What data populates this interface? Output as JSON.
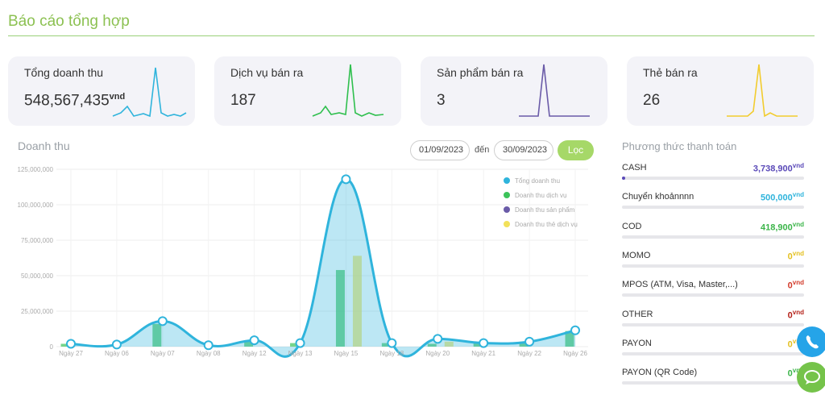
{
  "page": {
    "title": "Báo cáo tổng hợp"
  },
  "cards": [
    {
      "label": "Tổng doanh thu",
      "value": "548,567,435",
      "unit": "vnd",
      "color": "#2fb4dc"
    },
    {
      "label": "Dịch vụ bán ra",
      "value": "187",
      "unit": "",
      "color": "#2fbf4e"
    },
    {
      "label": "Sản phẩm bán ra",
      "value": "3",
      "unit": "",
      "color": "#6a5ba8"
    },
    {
      "label": "Thẻ bán ra",
      "value": "26",
      "unit": "",
      "color": "#f2cc2e"
    }
  ],
  "revenue": {
    "title": "Doanh thu",
    "date_from": "01/09/2023",
    "date_separator": "đến",
    "date_to": "30/09/2023",
    "filter_label": "Lọc"
  },
  "chart_data": {
    "type": "line",
    "categories": [
      "Ngày 27",
      "Ngày 06",
      "Ngày 07",
      "Ngày 08",
      "Ngày 12",
      "Ngày 13",
      "Ngày 15",
      "Ngày 18",
      "Ngày 20",
      "Ngày 21",
      "Ngày 22",
      "Ngày 26"
    ],
    "y_ticks": [
      "125,000,000",
      "100,000,000",
      "75,000,000",
      "50,000,000",
      "25,000,000",
      "0"
    ],
    "ylim": [
      0,
      125000000
    ],
    "grid": true,
    "legend_position": "top-right",
    "series": [
      {
        "name": "Tổng doanh thu",
        "type": "area",
        "color": "#2fb4dc",
        "values": [
          2000000,
          1500000,
          18000000,
          1000000,
          4500000,
          2500000,
          118000000,
          2500000,
          5500000,
          2500000,
          3500000,
          11500000
        ]
      },
      {
        "name": "Doanh thu dịch vụ",
        "type": "bar",
        "color": "#3cc35a",
        "values": [
          2000000,
          0,
          16000000,
          0,
          4500000,
          2500000,
          54000000,
          2500000,
          2000000,
          2500000,
          3500000,
          11000000
        ]
      },
      {
        "name": "Doanh thu sản phẩm",
        "type": "bar",
        "color": "#6a5ba8",
        "values": [
          0,
          0,
          0,
          0,
          0,
          0,
          0,
          0,
          0,
          0,
          0,
          0
        ]
      },
      {
        "name": "Doanh thu thẻ dịch vụ",
        "type": "bar",
        "color": "#f2e15a",
        "values": [
          0,
          0,
          0,
          0,
          0,
          0,
          64000000,
          0,
          3500000,
          0,
          0,
          0
        ]
      }
    ]
  },
  "payment": {
    "title": "Phương thức thanh toán",
    "unit": "vnd",
    "methods": [
      {
        "name": "CASH",
        "amount": "3,738,900",
        "color": "#5a49b8",
        "share": 0.018
      },
      {
        "name": "Chuyển khoảnnnn",
        "amount": "500,000",
        "color": "#2fb4dc",
        "share": 0
      },
      {
        "name": "COD",
        "amount": "418,900",
        "color": "#3cb54a",
        "share": 0
      },
      {
        "name": "MOMO",
        "amount": "0",
        "color": "#e4c021",
        "share": 0
      },
      {
        "name": "MPOS (ATM, Visa, Master,...)",
        "amount": "0",
        "color": "#d23a2a",
        "share": 0
      },
      {
        "name": "OTHER",
        "amount": "0",
        "color": "#b5221a",
        "share": 0
      },
      {
        "name": "PAYON",
        "amount": "0",
        "color": "#e4c021",
        "share": 0
      },
      {
        "name": "PAYON (QR Code)",
        "amount": "0",
        "color": "#3cb54a",
        "share": 0
      }
    ]
  },
  "fabs": {
    "phone_icon": "phone-icon",
    "chat_icon": "chat-icon"
  }
}
